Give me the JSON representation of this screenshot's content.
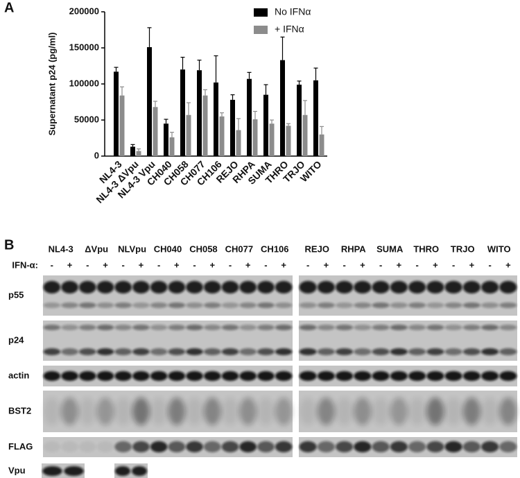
{
  "panel_labels": [
    "A",
    "B"
  ],
  "chart_data": {
    "type": "bar",
    "ylabel": "Supernatant p24 (pg/ml)",
    "categories": [
      "NL4-3",
      "NL4-3 ΔVpu",
      "NL4-3 Vpu",
      "CH040",
      "CH058",
      "CH077",
      "CH106",
      "REJO",
      "RHPA",
      "SUMA",
      "THRO",
      "TRJO",
      "WITO"
    ],
    "series": [
      {
        "name": "No IFNα",
        "color": "#000000",
        "values": [
          117000,
          13000,
          151000,
          45000,
          120000,
          119000,
          102000,
          78000,
          107000,
          85000,
          133000,
          99000,
          105000
        ],
        "errors": [
          6000,
          3000,
          27000,
          6000,
          17000,
          14000,
          37000,
          7000,
          9000,
          14000,
          32000,
          5000,
          17000
        ]
      },
      {
        "name": "+ IFNα",
        "color": "#8c8c8c",
        "values": [
          84000,
          7000,
          68000,
          26000,
          57000,
          84000,
          55000,
          36000,
          51000,
          45000,
          42000,
          57000,
          30000
        ],
        "errors": [
          12000,
          3000,
          8000,
          7000,
          17000,
          8000,
          5000,
          16000,
          11000,
          5000,
          3000,
          20000,
          11000
        ]
      }
    ],
    "ylim": [
      0,
      200000
    ],
    "yticks": [
      0,
      50000,
      100000,
      150000,
      200000
    ],
    "legend": "upper-right"
  },
  "blot": {
    "treatment_label": "IFN-α:",
    "signs": [
      "-",
      "+"
    ],
    "lanes_left": [
      "NL4-3",
      "ΔVpu",
      "NLVpu",
      "CH040",
      "CH058",
      "CH077",
      "CH106"
    ],
    "lanes_right": [
      "REJO",
      "RHPA",
      "SUMA",
      "THRO",
      "TRJO",
      "WITO"
    ],
    "rows": [
      "p55",
      "p24",
      "actin",
      "BST2",
      "FLAG",
      "Vpu"
    ]
  }
}
